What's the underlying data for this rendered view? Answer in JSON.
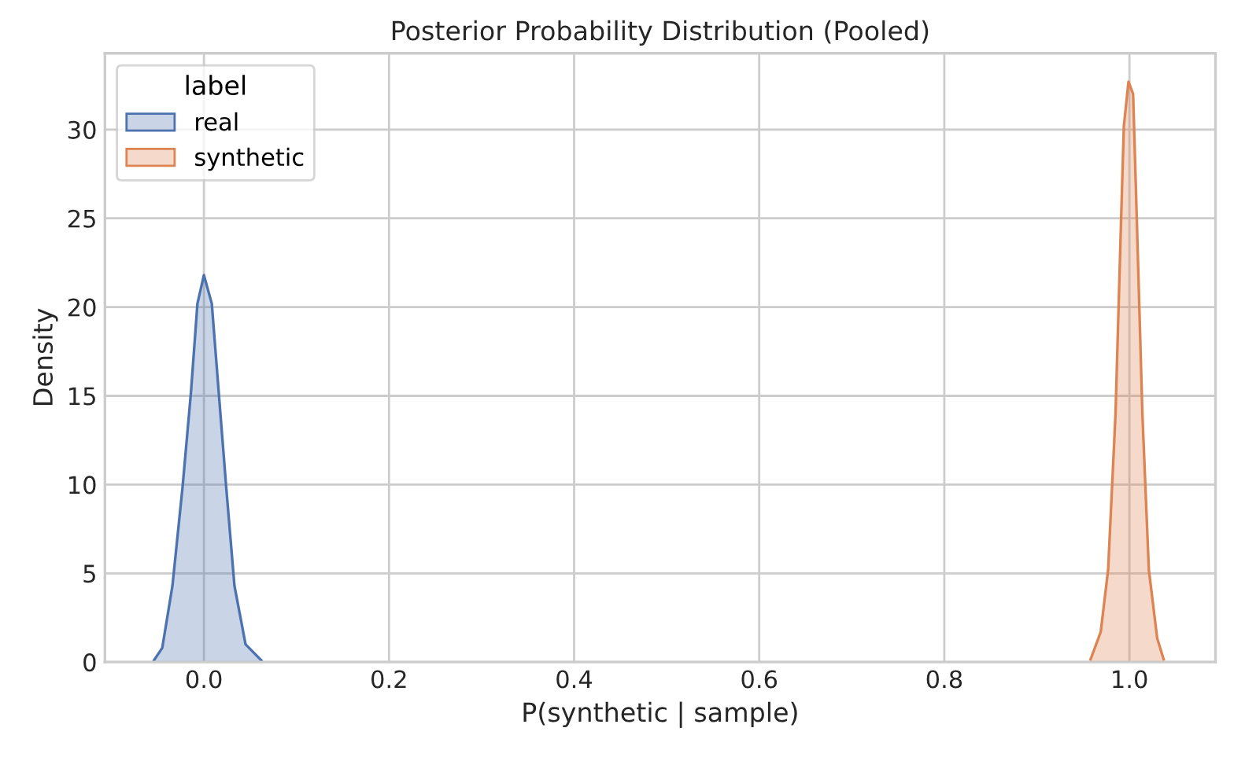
{
  "chart_data": {
    "type": "area",
    "title": "Posterior Probability Distribution (Pooled)",
    "xlabel": "P(synthetic | sample)",
    "ylabel": "Density",
    "legend_title": "label",
    "legend": "top left",
    "grid": true,
    "xlim": [
      -0.107,
      1.093
    ],
    "xticks": [
      {
        "value": 0,
        "label": "0.0"
      },
      0.2,
      0.4,
      0.6,
      0.8,
      {
        "value": 1,
        "label": "1.0"
      }
    ],
    "ylim": [
      0,
      34.3
    ],
    "yticks": [
      0,
      5,
      10,
      15,
      20,
      25,
      30
    ],
    "series": [
      {
        "name": "real",
        "color": "#4c72b0",
        "x": [
          -0.054,
          -0.045,
          -0.034,
          -0.023,
          -0.014,
          -0.007,
          0,
          0.0085,
          0.016,
          0.024,
          0.033,
          0.045,
          0.062
        ],
        "values": [
          0.1,
          0.8,
          4.3,
          9.9,
          15.2,
          20.2,
          21.8,
          20.2,
          15.2,
          9.9,
          4.3,
          1.0,
          0.1
        ]
      },
      {
        "name": "synthetic",
        "color": "#dd8452",
        "x": [
          0.958,
          0.969,
          0.977,
          0.985,
          0.991,
          0.994,
          0.999,
          1.004,
          1.008,
          1.014,
          1.021,
          1.03,
          1.037
        ],
        "values": [
          0.15,
          1.7,
          5.2,
          14,
          24.9,
          30.2,
          32.7,
          32,
          24.9,
          14,
          5.2,
          1.35,
          0.15
        ]
      }
    ]
  }
}
